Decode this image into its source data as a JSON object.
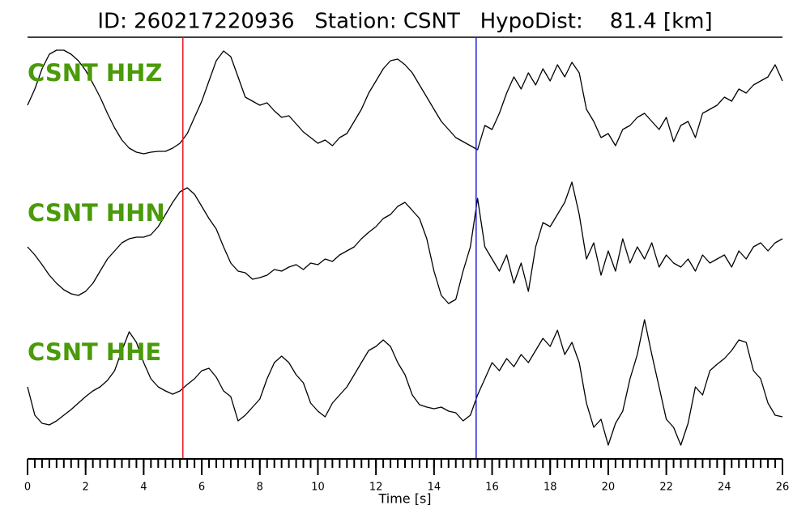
{
  "chart_data": {
    "type": "seismogram",
    "title": "ID: 260217220936   Station: CSNT   HypoDist:    81.4 [km]",
    "xlabel": "Time [s]",
    "xlim": [
      0,
      26
    ],
    "xticks": [
      0,
      2,
      4,
      6,
      8,
      10,
      12,
      14,
      16,
      18,
      20,
      22,
      24,
      26
    ],
    "xminorticks": [
      0,
      0.25,
      0.5,
      0.75,
      1,
      1.25,
      1.5,
      1.75,
      2,
      2.25,
      2.5,
      2.75,
      3,
      3.25,
      3.5,
      3.75,
      4,
      4.25,
      4.5,
      4.75,
      5,
      5.25,
      5.5,
      5.75,
      6,
      6.25,
      6.5,
      6.75,
      7,
      7.25,
      7.5,
      7.75,
      8,
      8.25,
      8.5,
      8.75,
      9,
      9.25,
      9.5,
      9.75,
      10,
      10.25,
      10.5,
      10.75,
      11,
      11.25,
      11.5,
      11.75,
      12,
      12.25,
      12.5,
      12.75,
      13,
      13.25,
      13.5,
      13.75,
      14,
      14.25,
      14.5,
      14.75,
      15,
      15.25,
      15.5,
      15.75,
      16,
      16.25,
      16.5,
      16.75,
      17,
      17.25,
      17.5,
      17.75,
      18,
      18.25,
      18.5,
      18.75,
      19,
      19.25,
      19.5,
      19.75,
      20,
      20.25,
      20.5,
      20.75,
      21,
      21.25,
      21.5,
      21.75,
      22,
      22.25,
      22.5,
      22.75,
      23,
      23.25,
      23.5,
      23.75,
      24,
      24.25,
      24.5,
      24.75,
      25,
      25.25,
      25.5,
      25.75,
      26
    ],
    "x": [
      0,
      0.25,
      0.5,
      0.75,
      1,
      1.25,
      1.5,
      1.75,
      2,
      2.25,
      2.5,
      2.75,
      3,
      3.25,
      3.5,
      3.75,
      4,
      4.25,
      4.5,
      4.75,
      5,
      5.25,
      5.5,
      5.75,
      6,
      6.25,
      6.5,
      6.75,
      7,
      7.25,
      7.5,
      7.75,
      8,
      8.25,
      8.5,
      8.75,
      9,
      9.25,
      9.5,
      9.75,
      10,
      10.25,
      10.5,
      10.75,
      11,
      11.25,
      11.5,
      11.75,
      12,
      12.25,
      12.5,
      12.75,
      13,
      13.25,
      13.5,
      13.75,
      14,
      14.25,
      14.5,
      14.75,
      15,
      15.25,
      15.5,
      15.75,
      16,
      16.25,
      16.5,
      16.75,
      17,
      17.25,
      17.5,
      17.75,
      18,
      18.25,
      18.5,
      18.75,
      19,
      19.25,
      19.5,
      19.75,
      20,
      20.25,
      20.5,
      20.75,
      21,
      21.25,
      21.5,
      21.75,
      22,
      22.25,
      22.5,
      22.75,
      23,
      23.25,
      23.5,
      23.75,
      24,
      24.25,
      24.5,
      24.75,
      25,
      25.25,
      25.5,
      25.75,
      26
    ],
    "ylim": [
      -90,
      90
    ],
    "label_color": "#4a9a0a",
    "markers": [
      {
        "x": 5.35,
        "color": "#e8141e"
      },
      {
        "x": 15.45,
        "color": "#1e1ee0"
      }
    ],
    "series": [
      {
        "name": "CSNT HHZ",
        "color": "#000000",
        "values": [
          -5,
          15,
          40,
          58,
          63,
          63,
          58,
          50,
          38,
          22,
          5,
          -15,
          -33,
          -48,
          -58,
          -63,
          -65,
          -63,
          -62,
          -62,
          -58,
          -52,
          -40,
          -20,
          0,
          25,
          50,
          62,
          55,
          30,
          5,
          0,
          -5,
          -2,
          -12,
          -20,
          -18,
          -28,
          -38,
          -45,
          -52,
          -48,
          -55,
          -45,
          -40,
          -25,
          -10,
          10,
          25,
          40,
          50,
          52,
          45,
          35,
          20,
          5,
          -10,
          -25,
          -35,
          -45,
          -50,
          -55,
          -60,
          -30,
          -35,
          -15,
          10,
          30,
          15,
          35,
          20,
          40,
          25,
          45,
          30,
          48,
          35,
          -10,
          -25,
          -45,
          -40,
          -55,
          -35,
          -30,
          -20,
          -15,
          -25,
          -35,
          -20,
          -50,
          -30,
          -25,
          -45,
          -15,
          -10,
          -5,
          5,
          0,
          15,
          10,
          20,
          25,
          30,
          45,
          25
        ]
      },
      {
        "name": "CSNT HHN",
        "color": "#000000",
        "values": [
          0,
          -10,
          -22,
          -35,
          -45,
          -53,
          -58,
          -60,
          -55,
          -45,
          -30,
          -15,
          -5,
          5,
          10,
          12,
          12,
          15,
          25,
          40,
          55,
          68,
          73,
          65,
          50,
          35,
          22,
          0,
          -20,
          -30,
          -32,
          -40,
          -38,
          -35,
          -28,
          -30,
          -25,
          -22,
          -28,
          -20,
          -22,
          -15,
          -18,
          -10,
          -5,
          0,
          10,
          18,
          25,
          35,
          40,
          50,
          55,
          45,
          35,
          10,
          -30,
          -60,
          -70,
          -65,
          -30,
          0,
          60,
          0,
          -15,
          -30,
          -10,
          -45,
          -20,
          -55,
          0,
          30,
          25,
          40,
          55,
          80,
          40,
          -15,
          5,
          -35,
          -5,
          -30,
          10,
          -20,
          0,
          -15,
          5,
          -25,
          -10,
          -20,
          -25,
          -15,
          -30,
          -10,
          -20,
          -15,
          -10,
          -25,
          -5,
          -15,
          0,
          5,
          -5,
          5,
          10
        ]
      },
      {
        "name": "CSNT HHE",
        "color": "#000000",
        "values": [
          0,
          -35,
          -45,
          -47,
          -42,
          -35,
          -28,
          -20,
          -12,
          -5,
          0,
          8,
          20,
          45,
          68,
          55,
          30,
          10,
          0,
          -5,
          -9,
          -5,
          3,
          10,
          20,
          23,
          12,
          -5,
          -12,
          -42,
          -35,
          -25,
          -15,
          10,
          30,
          38,
          30,
          15,
          5,
          -20,
          -30,
          -37,
          -20,
          -10,
          0,
          15,
          30,
          45,
          50,
          58,
          50,
          30,
          15,
          -10,
          -22,
          -25,
          -27,
          -25,
          -30,
          -32,
          -42,
          -35,
          -10,
          10,
          30,
          20,
          35,
          25,
          40,
          30,
          45,
          60,
          50,
          70,
          40,
          55,
          30,
          -20,
          -50,
          -40,
          -72,
          -45,
          -30,
          10,
          40,
          83,
          40,
          0,
          -40,
          -50,
          -72,
          -45,
          0,
          -10,
          20,
          28,
          35,
          45,
          58,
          55,
          20,
          10,
          -20,
          -35,
          -37
        ]
      }
    ]
  }
}
